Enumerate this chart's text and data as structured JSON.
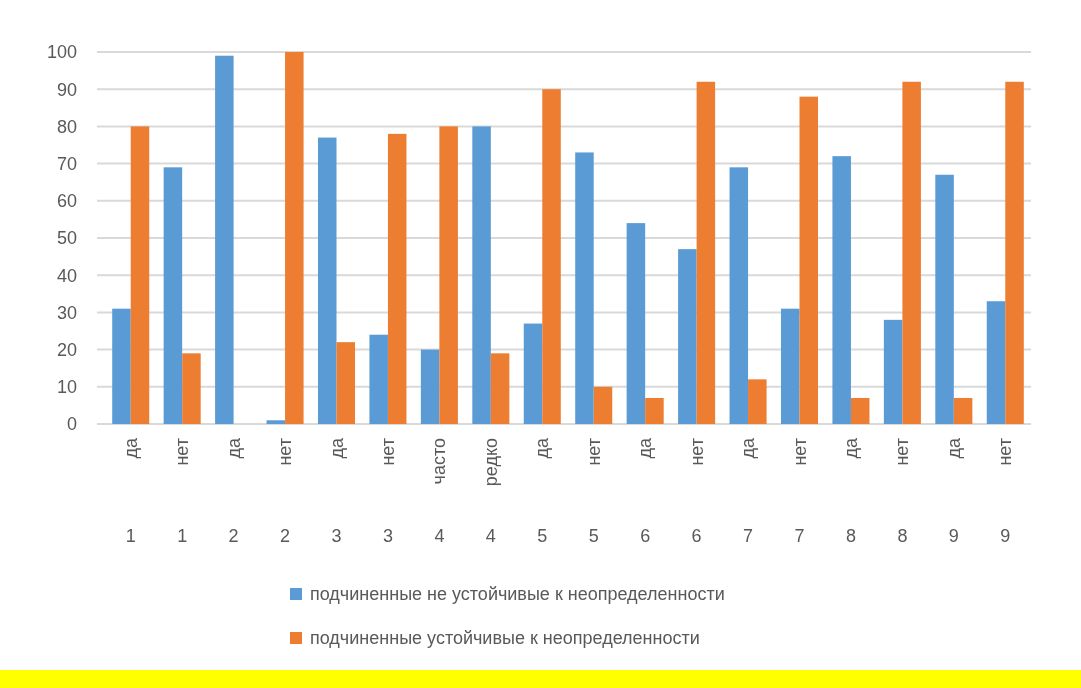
{
  "chart_data": {
    "type": "bar",
    "categories": [
      "да\n1",
      "нет\n1",
      "да\n2",
      "нет\n2",
      "да\n3",
      "нет\n3",
      "часто\n4",
      "редко\n4",
      "да\n5",
      "нет\n5",
      "да\n6",
      "нет\n6",
      "да\n7",
      "нет\n7",
      "да\n8",
      "нет\n8",
      "да\n9",
      "нет\n9"
    ],
    "series": [
      {
        "name": "подчиненные не устойчивые к неопределенности",
        "color": "#5b9bd5",
        "values": [
          31,
          69,
          99,
          1,
          77,
          24,
          20,
          80,
          27,
          73,
          54,
          47,
          69,
          31,
          72,
          28,
          67,
          33
        ]
      },
      {
        "name": "подчиненные устойчивые к неопределенности",
        "color": "#ed7d31",
        "values": [
          80,
          19,
          0,
          100,
          22,
          78,
          80,
          19,
          90,
          10,
          7,
          92,
          12,
          88,
          7,
          92,
          7,
          92
        ]
      }
    ],
    "ylim": [
      0,
      100
    ],
    "yticks": [
      0,
      10,
      20,
      30,
      40,
      50,
      60,
      70,
      80,
      90,
      100
    ],
    "grid": "y",
    "legend": "bottom"
  }
}
